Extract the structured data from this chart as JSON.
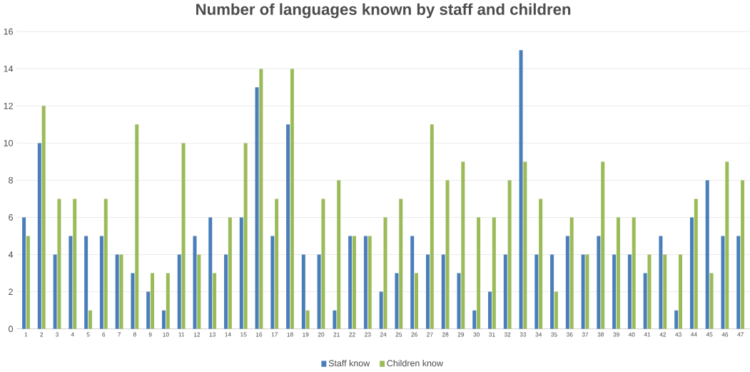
{
  "chart_data": {
    "type": "bar",
    "title": "Number of languages known by staff and children",
    "categories": [
      "1",
      "2",
      "3",
      "4",
      "5",
      "6",
      "7",
      "8",
      "9",
      "10",
      "11",
      "12",
      "13",
      "14",
      "15",
      "16",
      "17",
      "18",
      "19",
      "20",
      "21",
      "22",
      "23",
      "24",
      "25",
      "26",
      "27",
      "28",
      "29",
      "30",
      "31",
      "32",
      "33",
      "34",
      "35",
      "36",
      "37",
      "38",
      "39",
      "40",
      "41",
      "42",
      "43",
      "44",
      "45",
      "46",
      "47"
    ],
    "series": [
      {
        "name": "Staff know",
        "color": "#4a7ebb",
        "values": [
          6,
          10,
          4,
          5,
          5,
          5,
          4,
          3,
          2,
          1,
          4,
          5,
          6,
          4,
          6,
          13,
          5,
          11,
          4,
          4,
          1,
          5,
          5,
          2,
          3,
          5,
          4,
          4,
          3,
          1,
          2,
          4,
          15,
          4,
          4,
          5,
          4,
          5,
          4,
          4,
          3,
          5,
          1,
          6,
          8,
          5,
          5
        ]
      },
      {
        "name": "Children know",
        "color": "#9bbb59",
        "values": [
          5,
          12,
          7,
          7,
          1,
          7,
          4,
          11,
          3,
          3,
          10,
          4,
          3,
          6,
          10,
          14,
          7,
          14,
          1,
          7,
          8,
          5,
          5,
          6,
          7,
          3,
          11,
          8,
          9,
          6,
          6,
          8,
          9,
          7,
          2,
          6,
          4,
          9,
          6,
          6,
          4,
          4,
          4,
          7,
          3,
          9,
          8
        ]
      }
    ],
    "ylim": [
      0,
      16
    ],
    "yticks": [
      0,
      2,
      4,
      6,
      8,
      10,
      12,
      14,
      16
    ],
    "grid": "y",
    "legend": "bottom"
  }
}
